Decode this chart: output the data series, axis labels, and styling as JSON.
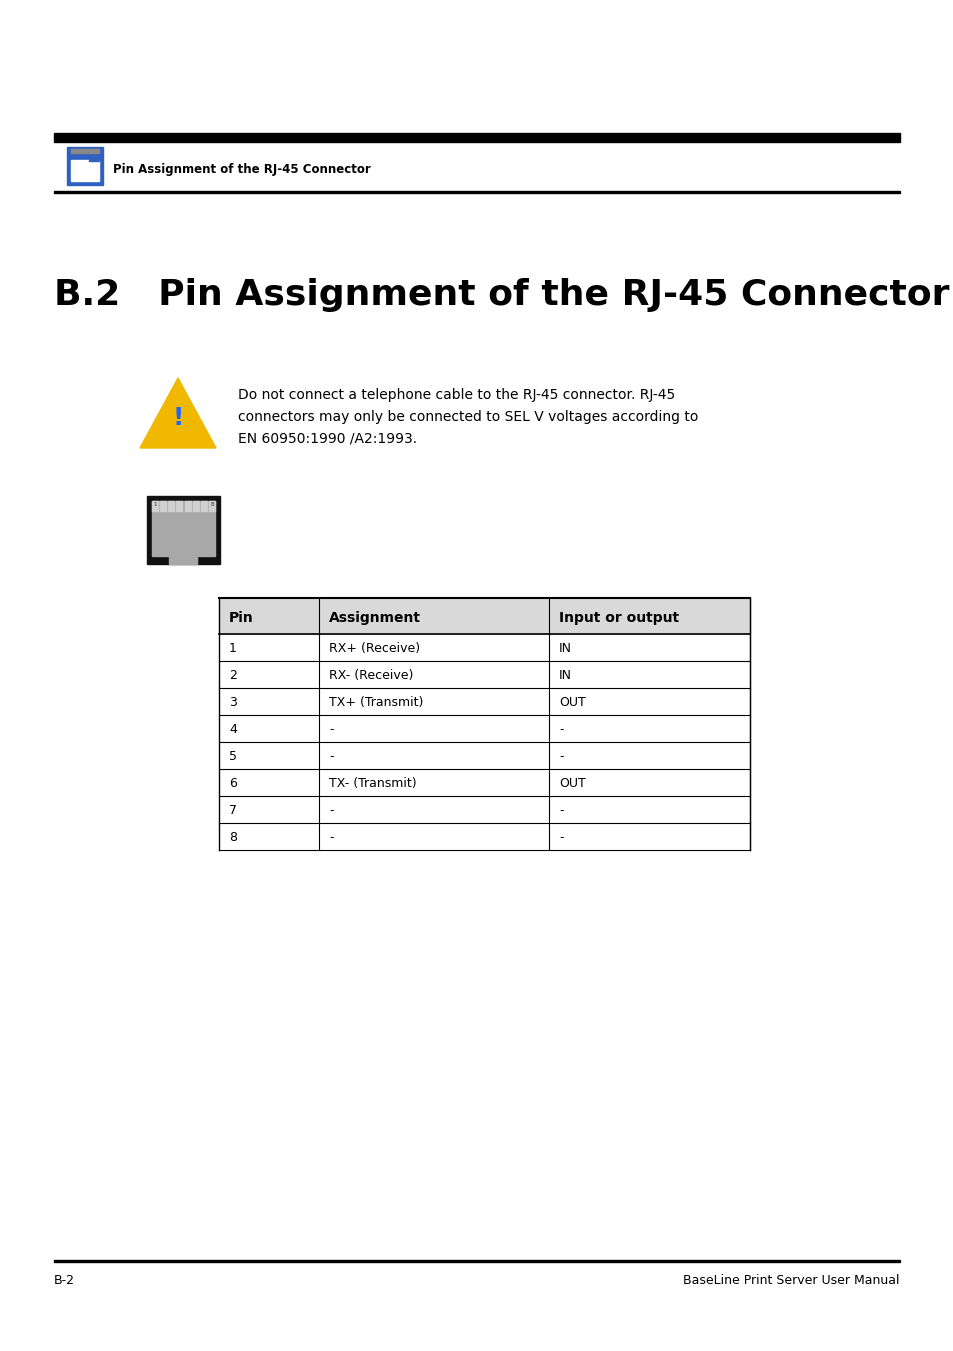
{
  "page_bg": "#ffffff",
  "header_text": "Pin Assignment of the RJ-45 Connector",
  "main_title": "B.2   Pin Assignment of the RJ-45 Connector",
  "warning_line1": "Do not connect a telephone cable to the RJ-45 connector. RJ-45",
  "warning_line2": "connectors may only be connected to SEL V voltages according to",
  "warning_line3": "EN 60950:1990 /A2:1993.",
  "table_header": [
    "Pin",
    "Assignment",
    "Input or output"
  ],
  "table_rows": [
    [
      "1",
      "RX+ (Receive)",
      "IN"
    ],
    [
      "2",
      "RX- (Receive)",
      "IN"
    ],
    [
      "3",
      "TX+ (Transmit)",
      "OUT"
    ],
    [
      "4",
      "-",
      "-"
    ],
    [
      "5",
      "-",
      "-"
    ],
    [
      "6",
      "TX- (Transmit)",
      "OUT"
    ],
    [
      "7",
      "-",
      "-"
    ],
    [
      "8",
      "-",
      "-"
    ]
  ],
  "table_header_bg": "#d9d9d9",
  "footer_left": "B-2",
  "footer_right": "BaseLine Print Server User Manual"
}
